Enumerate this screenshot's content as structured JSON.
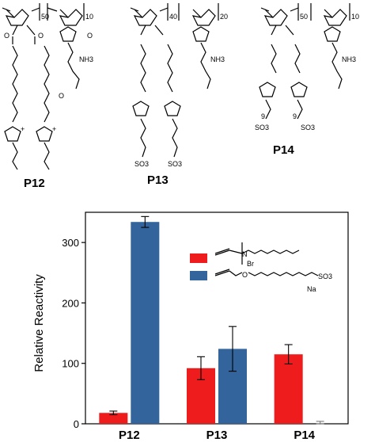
{
  "structures": {
    "p12": {
      "label": "P12",
      "sub_a": "50",
      "sub_b": "10"
    },
    "p13": {
      "label": "P13",
      "sub_a": "40",
      "sub_b": "20"
    },
    "p14": {
      "label": "P14",
      "sub_a": "50",
      "sub_b": "10"
    },
    "atoms": {
      "o": "O",
      "n": "N",
      "nh3": "NH3",
      "plus": "+",
      "minus": "−",
      "so3": "SO3",
      "nine": "9",
      "br": "Br",
      "na": "Na"
    }
  },
  "chart_data": {
    "type": "bar",
    "categories": [
      "P12",
      "P13",
      "P14"
    ],
    "series": [
      {
        "name": "",
        "color": "#ee1c1c",
        "values": [
          18,
          92,
          115
        ],
        "errors": [
          3,
          19,
          16
        ]
      },
      {
        "name": "",
        "color": "#33649c",
        "values": [
          334,
          124,
          0
        ],
        "errors": [
          9,
          37,
          4
        ]
      }
    ],
    "ylabel": "Relative Reactivity",
    "xlabel": "",
    "ylim": [
      0,
      350
    ],
    "yticks": [
      0,
      100,
      200,
      300
    ],
    "ytick_labels": [
      "0",
      "100",
      "200",
      "300"
    ],
    "grid": false,
    "legend_position": "top-right"
  }
}
